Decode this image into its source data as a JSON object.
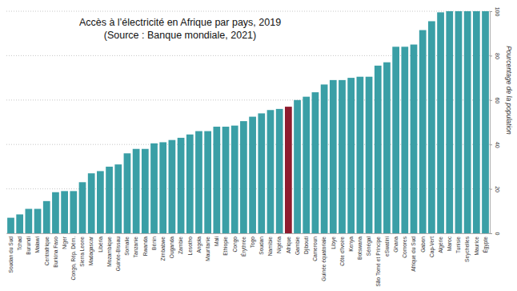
{
  "chart_data": {
    "type": "bar",
    "title": "Accès à l’électricité en Afrique par pays, 2019",
    "subtitle": "(Source : Banque mondiale, 2021)",
    "y_label": "Pourcentage de la population",
    "categories": [
      "Soudan du Sud",
      "Tchad",
      "Burundi",
      "Malawi",
      "Centrafrique",
      "Burkina Faso",
      "Niger",
      "Congo, Rép. Dém.",
      "Sierra Leone",
      "Madagascar",
      "Libéria",
      "Mozambique",
      "Guinée-Bissau",
      "Somalie",
      "Tanzanie",
      "Rwanda",
      "Bénin",
      "Zimbabwe",
      "Ouganda",
      "Zambie",
      "Lesotho",
      "Angola",
      "Mauritanie",
      "Mali",
      "Ethiopie",
      "Congo",
      "Érythrée",
      "Togo",
      "Soudan",
      "Namibie",
      "Nigéria",
      "Afrique",
      "Gambie",
      "Djibouti",
      "Cameroun",
      "Guinée équatoriale",
      "Libye",
      "Côte d'Ivoire",
      "Kenya",
      "Botswana",
      "Sénégal",
      "São Tomé et Principe",
      "eSwatini",
      "Ghana",
      "Comores",
      "Afrique du Sud",
      "Gabon",
      "Cap-Vert",
      "Algérie",
      "Maroc",
      "Tunisie",
      "Seychelles",
      "Maurice",
      "Égypte"
    ],
    "values": [
      7,
      8.5,
      11,
      11,
      14.5,
      18.5,
      19,
      19,
      23,
      27,
      28,
      30,
      31,
      36,
      38,
      38,
      40.5,
      41,
      42,
      43,
      44.5,
      46,
      46,
      48,
      48,
      48.5,
      50.5,
      52.5,
      54,
      55.5,
      56,
      57,
      60,
      61.5,
      63.5,
      67,
      69,
      69,
      70,
      70.5,
      70.5,
      75.5,
      77,
      84,
      84,
      85,
      91.5,
      95.5,
      99.5,
      100,
      100,
      100,
      100,
      100
    ],
    "colors": [
      "#3a9fa6",
      "#3a9fa6",
      "#3a9fa6",
      "#3a9fa6",
      "#3a9fa6",
      "#3a9fa6",
      "#3a9fa6",
      "#3a9fa6",
      "#3a9fa6",
      "#3a9fa6",
      "#3a9fa6",
      "#3a9fa6",
      "#3a9fa6",
      "#3a9fa6",
      "#3a9fa6",
      "#3a9fa6",
      "#3a9fa6",
      "#3a9fa6",
      "#3a9fa6",
      "#3a9fa6",
      "#3a9fa6",
      "#3a9fa6",
      "#3a9fa6",
      "#3a9fa6",
      "#3a9fa6",
      "#3a9fa6",
      "#3a9fa6",
      "#3a9fa6",
      "#3a9fa6",
      "#3a9fa6",
      "#3a9fa6",
      "#8e1b2e",
      "#3a9fa6",
      "#3a9fa6",
      "#3a9fa6",
      "#3a9fa6",
      "#3a9fa6",
      "#3a9fa6",
      "#3a9fa6",
      "#3a9fa6",
      "#3a9fa6",
      "#3a9fa6",
      "#3a9fa6",
      "#3a9fa6",
      "#3a9fa6",
      "#3a9fa6",
      "#3a9fa6",
      "#3a9fa6",
      "#3a9fa6",
      "#3a9fa6",
      "#3a9fa6",
      "#3a9fa6",
      "#3a9fa6",
      "#3a9fa6"
    ],
    "ylim": [
      0,
      100
    ],
    "yticks": [
      0,
      20,
      40,
      60,
      80,
      100
    ],
    "grid": true
  }
}
